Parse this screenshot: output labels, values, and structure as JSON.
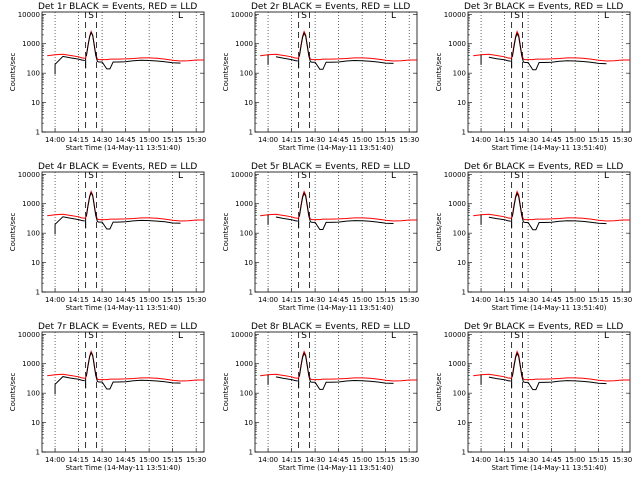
{
  "chart_data": {
    "type": "line",
    "shared": {
      "xlabel": "Start Time (14-May-11 13:51:40)",
      "ylabel": "Counts/sec",
      "x_tick_labels": [
        "14:00",
        "14:15",
        "14:30",
        "14:45",
        "15:00",
        "15:15",
        "15:30"
      ],
      "x_tick_minutes": [
        0,
        15,
        30,
        45,
        60,
        75,
        90
      ],
      "xlim_minutes": [
        -8.33,
        95
      ],
      "y_scale": "log",
      "ylim": [
        1,
        12000
      ],
      "y_tick_labels": [
        "1",
        "10",
        "100",
        "1000",
        "10000"
      ],
      "y_tick_values": [
        1,
        10,
        100,
        1000,
        10000
      ],
      "dotted_lines_minutes": [
        0,
        15,
        30,
        45,
        60,
        75,
        90
      ],
      "dashed_lines_minutes": [
        19.5,
        26.5
      ],
      "markers": [
        {
          "label": "S",
          "minutes": 23
        },
        {
          "label": "L",
          "minutes": 80
        }
      ],
      "series_names": [
        "Events (BLACK)",
        "LLD (RED)"
      ],
      "colors": {
        "events": "#000000",
        "lld": "#ff0000"
      },
      "x_minutes": [
        -5,
        0,
        5,
        10,
        15,
        17,
        19,
        19.5,
        20,
        21,
        22,
        23,
        24,
        25,
        26,
        27,
        28,
        30,
        33,
        35,
        37,
        40,
        45,
        50,
        55,
        60,
        65,
        70,
        75,
        80,
        85,
        90,
        95
      ],
      "lld_values": [
        390,
        420,
        440,
        400,
        360,
        330,
        320,
        320,
        420,
        900,
        1800,
        2600,
        2000,
        900,
        420,
        300,
        290,
        290,
        290,
        300,
        300,
        300,
        305,
        315,
        330,
        330,
        320,
        300,
        275,
        260,
        265,
        280,
        280
      ],
      "events_segments_minutes": [
        [
          [
            0,
            0
          ],
          [
            15,
            30
          ]
        ],
        [
          [
            20,
            26.5
          ]
        ],
        [
          [
            27,
            80
          ]
        ]
      ]
    },
    "panels": [
      {
        "title": "Det 1r BLACK = Events, RED = LLD",
        "events_values": [
          null,
          200,
          370,
          330,
          300,
          280,
          270,
          null,
          380,
          850,
          1700,
          2400,
          1900,
          850,
          400,
          250,
          240,
          240,
          140,
          140,
          240,
          240,
          245,
          265,
          275,
          270,
          260,
          245,
          225,
          220,
          null,
          null,
          null
        ]
      },
      {
        "title": "Det 2r BLACK = Events, RED = LLD",
        "events_values": [
          null,
          null,
          360,
          320,
          290,
          270,
          260,
          null,
          370,
          820,
          1650,
          2300,
          1800,
          820,
          390,
          245,
          235,
          235,
          135,
          135,
          235,
          235,
          240,
          260,
          270,
          265,
          255,
          240,
          220,
          215,
          null,
          null,
          null
        ]
      },
      {
        "title": "Det 3r BLACK = Events, RED = LLD",
        "events_values": [
          null,
          null,
          350,
          310,
          285,
          265,
          255,
          null,
          360,
          800,
          1600,
          2200,
          1750,
          800,
          380,
          240,
          230,
          230,
          130,
          130,
          230,
          230,
          235,
          255,
          265,
          260,
          250,
          235,
          215,
          210,
          null,
          null,
          null
        ]
      },
      {
        "title": "Det 4r BLACK = Events, RED = LLD",
        "events_values": [
          null,
          200,
          360,
          320,
          290,
          270,
          260,
          null,
          370,
          830,
          1680,
          2350,
          1850,
          830,
          395,
          248,
          238,
          238,
          138,
          138,
          238,
          238,
          243,
          262,
          272,
          268,
          258,
          243,
          222,
          218,
          null,
          null,
          null
        ]
      },
      {
        "title": "Det 5r BLACK = Events, RED = LLD",
        "events_values": [
          null,
          null,
          355,
          315,
          288,
          268,
          258,
          null,
          365,
          815,
          1630,
          2280,
          1780,
          815,
          385,
          243,
          233,
          233,
          133,
          133,
          233,
          233,
          238,
          258,
          268,
          263,
          253,
          238,
          218,
          213,
          null,
          null,
          null
        ]
      },
      {
        "title": "Det 6r BLACK = Events, RED = LLD",
        "events_values": [
          null,
          null,
          350,
          312,
          286,
          266,
          256,
          null,
          362,
          805,
          1610,
          2250,
          1760,
          805,
          382,
          241,
          231,
          231,
          131,
          131,
          231,
          231,
          236,
          256,
          266,
          261,
          251,
          236,
          216,
          211,
          null,
          null,
          null
        ]
      },
      {
        "title": "Det 7r BLACK = Events, RED = LLD",
        "events_values": [
          null,
          200,
          365,
          325,
          295,
          275,
          265,
          null,
          375,
          840,
          1690,
          2380,
          1870,
          840,
          398,
          249,
          239,
          239,
          139,
          139,
          239,
          239,
          244,
          264,
          274,
          269,
          259,
          244,
          224,
          219,
          null,
          null,
          null
        ]
      },
      {
        "title": "Det 8r BLACK = Events, RED = LLD",
        "events_values": [
          null,
          null,
          358,
          318,
          289,
          269,
          259,
          null,
          368,
          818,
          1640,
          2290,
          1790,
          818,
          388,
          244,
          234,
          234,
          134,
          134,
          234,
          234,
          239,
          259,
          269,
          264,
          254,
          239,
          219,
          214,
          null,
          null,
          null
        ]
      },
      {
        "title": "Det 9r BLACK = Events, RED = LLD",
        "events_values": [
          null,
          null,
          352,
          313,
          287,
          267,
          257,
          null,
          363,
          808,
          1620,
          2260,
          1770,
          808,
          383,
          242,
          232,
          232,
          132,
          132,
          232,
          232,
          237,
          257,
          267,
          262,
          252,
          237,
          217,
          212,
          null,
          null,
          null
        ]
      }
    ]
  }
}
